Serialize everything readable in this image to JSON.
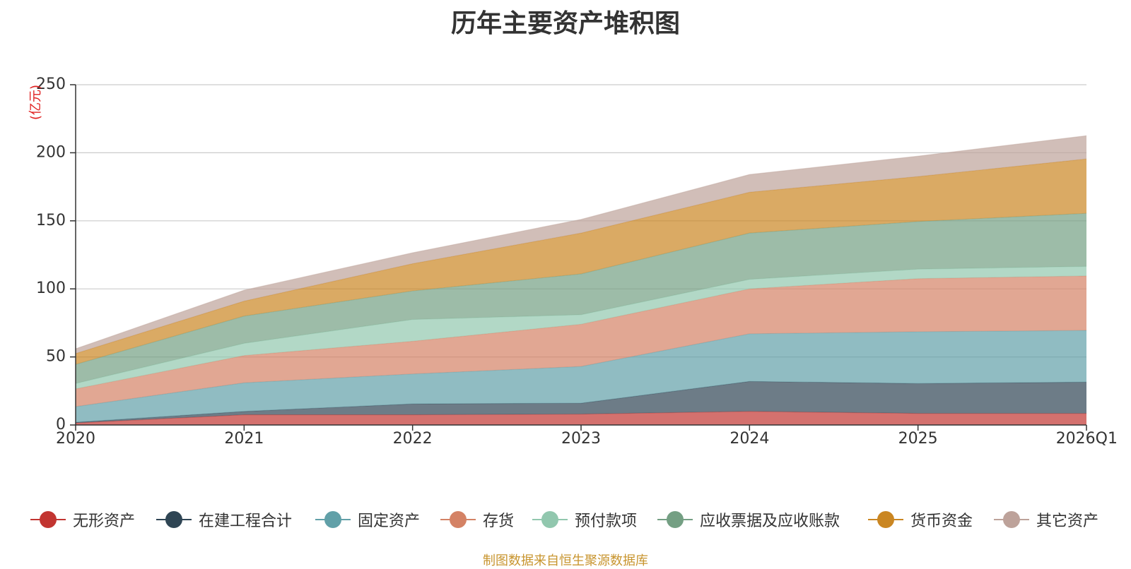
{
  "chart_data": {
    "type": "area",
    "stacked": true,
    "title": "历年主要资产堆积图",
    "ylabel": "(亿元)",
    "ylabel_color": "#e02020",
    "categories": [
      "2020",
      "2021",
      "2022",
      "2023",
      "2024",
      "2025",
      "2026Q1"
    ],
    "ylim": [
      0,
      250
    ],
    "yticks": [
      0,
      50,
      100,
      150,
      200,
      250
    ],
    "grid": true,
    "legend_position": "bottom",
    "series": [
      {
        "name": "无形资产",
        "color": "#c23531",
        "values": [
          1.5,
          7.5,
          7.5,
          8,
          10,
          8.5,
          8.5
        ]
      },
      {
        "name": "在建工程合计",
        "color": "#2f4554",
        "values": [
          0.5,
          2.5,
          8,
          8,
          22,
          22,
          23
        ]
      },
      {
        "name": "固定资产",
        "color": "#61a0a8",
        "values": [
          11.5,
          21,
          22,
          27,
          35,
          38,
          38
        ]
      },
      {
        "name": "存货",
        "color": "#d48265",
        "values": [
          13,
          20,
          24,
          31,
          33,
          39,
          40
        ]
      },
      {
        "name": "预付款项",
        "color": "#91c7ae",
        "values": [
          4,
          9,
          16,
          7,
          7,
          7,
          7
        ]
      },
      {
        "name": "应收票据及应收账款",
        "color": "#749f83",
        "values": [
          14,
          20,
          21,
          30,
          34,
          35,
          39
        ]
      },
      {
        "name": "货币资金",
        "color": "#ca8622",
        "values": [
          8,
          11,
          20,
          30,
          30,
          33,
          40
        ]
      },
      {
        "name": "其它资产",
        "color": "#bda29a",
        "values": [
          3.5,
          8,
          8,
          10,
          13,
          15,
          17
        ]
      }
    ]
  },
  "footnote": "制图数据来自恒生聚源数据库"
}
